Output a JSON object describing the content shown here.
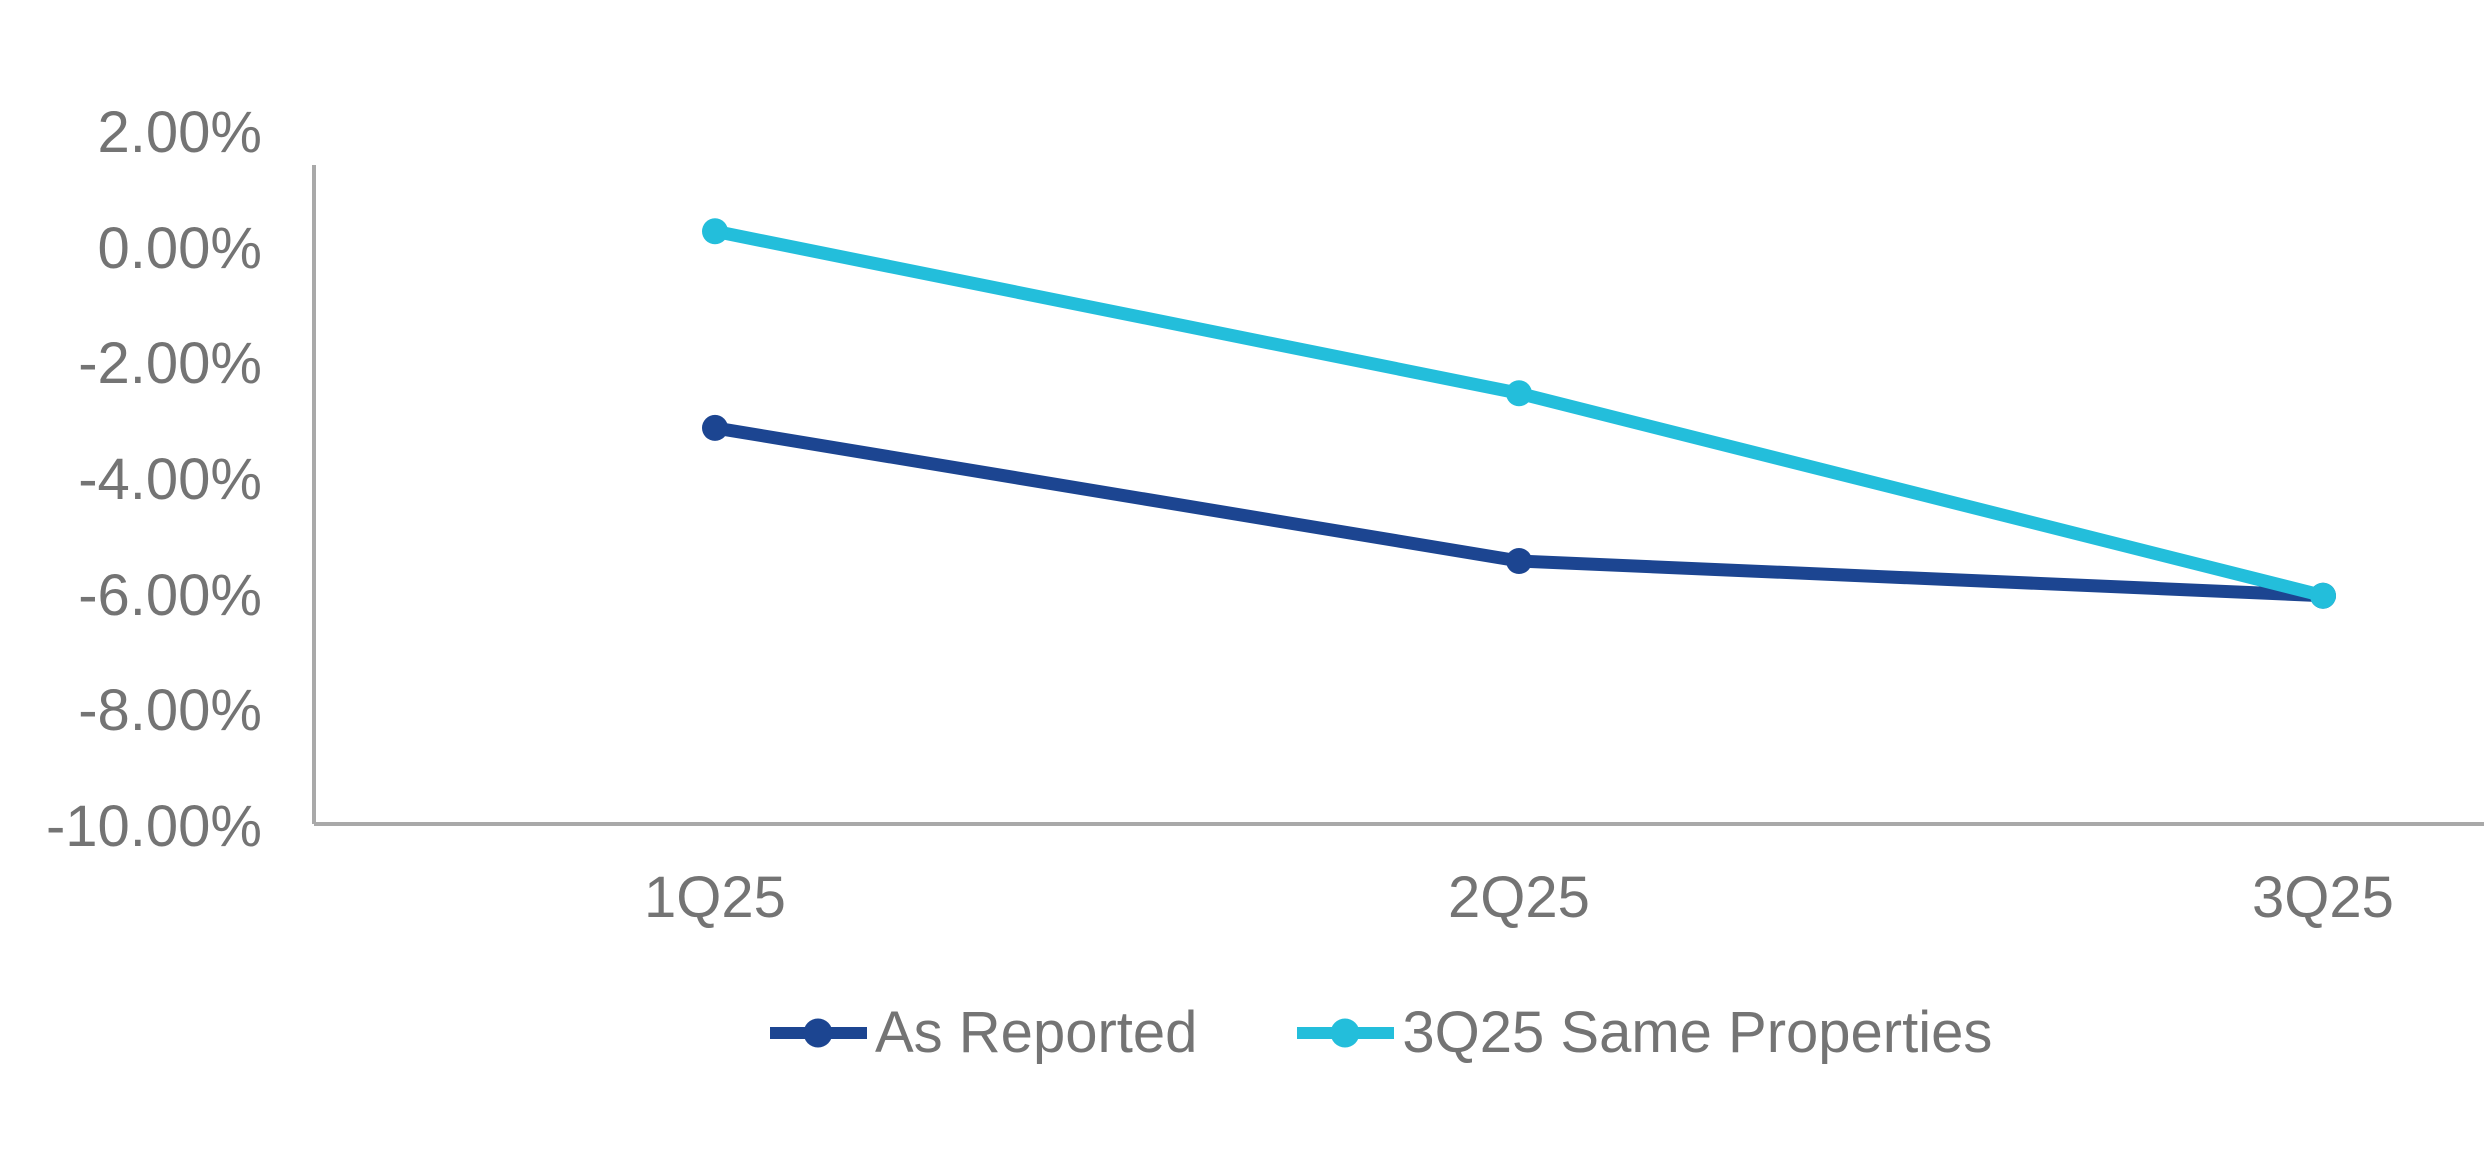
{
  "chart_data": {
    "type": "line",
    "title": "",
    "xlabel": "",
    "ylabel": "",
    "categories": [
      "1Q25",
      "2Q25",
      "3Q25"
    ],
    "series": [
      {
        "name": "As Reported",
        "color": "#1C4591",
        "values": [
          -3.1,
          -5.4,
          -6.0
        ]
      },
      {
        "name": "3Q25 Same Properties",
        "color": "#23BEDB",
        "values": [
          0.3,
          -2.5,
          -6.0
        ]
      }
    ],
    "ylim": [
      -10,
      2
    ],
    "ytick_step": 2,
    "y_tick_labels": [
      "2.00%",
      "0.00%",
      "-2.00%",
      "-4.00%",
      "-6.00%",
      "-8.00%",
      "-10.00%"
    ],
    "grid": false,
    "legend_position": "bottom",
    "axis_color": "#A9A9A9",
    "label_color": "#747474"
  }
}
